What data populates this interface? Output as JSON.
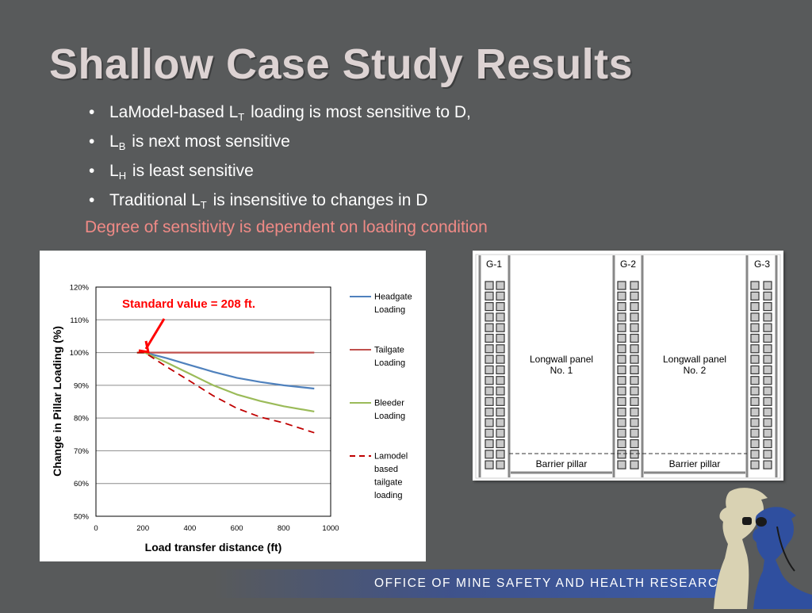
{
  "slide": {
    "title": "Shallow Case Study Results",
    "bullets": [
      {
        "pre": "LaModel-based L",
        "sub": "T",
        "post": " loading is most sensitive to D,"
      },
      {
        "pre": "L",
        "sub": "B",
        "post": " is next most sensitive"
      },
      {
        "pre": "L",
        "sub": "H",
        "post": " is least sensitive"
      },
      {
        "pre": "Traditional L",
        "sub": "T",
        "post": " is insensitive to changes in D"
      }
    ],
    "note": "Degree of sensitivity is dependent on loading condition",
    "footer": "OFFICE OF MINE SAFETY AND HEALTH RESEARCH"
  },
  "colors": {
    "background": "#585a5b",
    "title": "#ddd3d3",
    "note": "#f08a86",
    "headgate": "#4f81bd",
    "tailgate": "#c0504d",
    "bleeder": "#9bbb59",
    "lamodel": "#c00000",
    "footer_band": "#3a5aa8"
  },
  "chart_data": {
    "type": "line",
    "xlabel": "Load transfer distance (ft)",
    "ylabel": "Change in Pillar Loading (%)",
    "xlim": [
      0,
      1000
    ],
    "ylim": [
      50,
      120
    ],
    "x_ticks": [
      0,
      200,
      400,
      600,
      800,
      1000
    ],
    "y_ticks": [
      50,
      60,
      70,
      80,
      90,
      100,
      110,
      120
    ],
    "y_tick_labels": [
      "50%",
      "60%",
      "70%",
      "80%",
      "90%",
      "100%",
      "110%",
      "120%"
    ],
    "grid": true,
    "legend_position": "right",
    "annotation": {
      "text": "Standard value = 208 ft.",
      "x": 208,
      "y": 100
    },
    "series": [
      {
        "name": "Headgate Loading",
        "legend_lines": [
          "Headgate",
          "Loading"
        ],
        "color": "#4f81bd",
        "dash": false,
        "x": [
          175,
          208,
          300,
          400,
          500,
          600,
          700,
          800,
          930
        ],
        "y": [
          100,
          100,
          98.3,
          96.2,
          94.1,
          92.3,
          91,
          90,
          89
        ]
      },
      {
        "name": "Tailgate Loading",
        "legend_lines": [
          "Tailgate",
          "Loading"
        ],
        "color": "#c0504d",
        "dash": false,
        "x": [
          175,
          208,
          400,
          600,
          800,
          930
        ],
        "y": [
          100,
          100,
          100,
          100,
          100,
          100
        ]
      },
      {
        "name": "Bleeder Loading",
        "legend_lines": [
          "Bleeder",
          "Loading"
        ],
        "color": "#9bbb59",
        "dash": false,
        "x": [
          175,
          208,
          300,
          400,
          500,
          600,
          700,
          800,
          930
        ],
        "y": [
          100,
          100,
          97,
          93.5,
          90,
          87.2,
          85.2,
          83.6,
          82
        ]
      },
      {
        "name": "Lamodel based tailgate loading",
        "legend_lines": [
          "Lamodel",
          "based",
          "tailgate",
          "loading"
        ],
        "color": "#c00000",
        "dash": true,
        "x": [
          175,
          208,
          300,
          400,
          500,
          600,
          700,
          800,
          930
        ],
        "y": [
          100,
          100,
          95.7,
          91.3,
          86.8,
          83,
          80.3,
          78.5,
          75.5
        ]
      }
    ]
  },
  "diagram": {
    "gate_labels": [
      "G-1",
      "G-2",
      "G-3"
    ],
    "panels": [
      {
        "line1": "Longwall panel",
        "line2": "No. 1"
      },
      {
        "line1": "Longwall panel",
        "line2": "No. 2"
      }
    ],
    "barrier_label": "Barrier pillar"
  },
  "logo": {
    "icon": "miner-with-helmet-logo"
  }
}
